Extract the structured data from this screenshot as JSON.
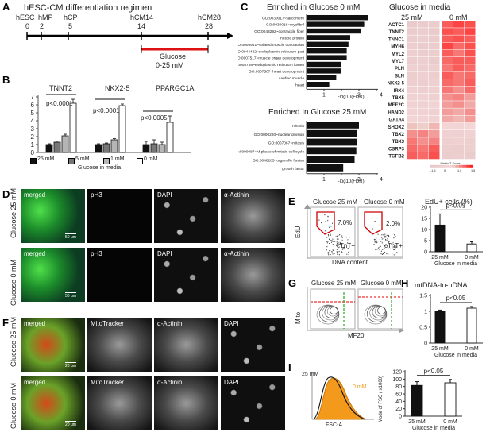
{
  "panel_letters": [
    "A",
    "B",
    "C",
    "D",
    "E",
    "F",
    "G",
    "H",
    "I"
  ],
  "panelA": {
    "title": "hESC-CM differentiation regimen",
    "stages": [
      {
        "name": "hESC",
        "day": "0"
      },
      {
        "name": "hMP",
        "day": "2"
      },
      {
        "name": "hCP",
        "day": "5"
      },
      {
        "name": "hCM14",
        "day": "14"
      },
      {
        "name": "hCM28",
        "day": "28"
      }
    ],
    "treatment": "Glucose",
    "treatment_conc": "0-25 mM"
  },
  "panelB": {
    "genes": [
      "TNNT2",
      "NKX2-5",
      "PPARGC1A"
    ],
    "pvals": [
      "p<0.0001",
      "p<0.0001",
      "p<0.0005"
    ],
    "yticks": [
      "0",
      "1",
      "2",
      "3",
      "4",
      "5",
      "6",
      "7"
    ],
    "legend": [
      "25 mM",
      "5 mM",
      "1 mM",
      "0 mM"
    ],
    "legend_title": "Glucose in media",
    "colors": [
      "#111111",
      "#777777",
      "#b5b5b5",
      "#ffffff"
    ]
  },
  "panelC": {
    "title1": "Enriched in Glucose 0 mM",
    "title2": "Enriched In Glucose 25 mM",
    "go1_labels": [
      "GO:0030017~sarcomere",
      "GO:0030016~myofibril",
      "GO:0043292~contractile fiber",
      "muscle protein",
      "GO:0006941~striated muscle contraction",
      "GO:0044432~endoplasmic reticulum part",
      "GO:0007517~muscle organ development",
      "GO:0005788~endoplasmic reticulum lumen",
      "GO:0007507~heart development",
      "cardiac muscle",
      "heart"
    ],
    "go1_values": [
      3.5,
      3.3,
      3.1,
      2.5,
      2.4,
      2.3,
      2.3,
      2.0,
      2.0,
      1.7,
      1.3
    ],
    "go2_labels": [
      "mitosis",
      "GO:0000280~nuclear division",
      "GO:0007067~mitosis",
      "GO:0000087~M phase of mitotic cell cycle",
      "GO:0048285~organelle fission",
      "growth factor"
    ],
    "go2_values": [
      3.0,
      2.9,
      2.9,
      2.85,
      2.75,
      2.1
    ],
    "xticks": [
      "0",
      "1",
      "2",
      "3",
      "4"
    ],
    "xlabel": "-log10(FDR)",
    "heat_title": "Glucose in media",
    "heat_cols": [
      "25 mM",
      "0 mM"
    ],
    "genes": [
      "ACTC1",
      "TNNT2",
      "TNNC1",
      "MYH6",
      "MYL2",
      "MYL7",
      "PLN",
      "SLN",
      "NKX2-5",
      "IRX4",
      "TBX5",
      "MEF2C",
      "HAND2",
      "GATA4",
      "SHOX2",
      "TBX2",
      "TBX3",
      "CSRP3",
      "TGFB2"
    ],
    "heat_values": [
      [
        -1.2,
        -1.1,
        -1.0,
        1.0,
        1.2,
        1.1
      ],
      [
        -1.1,
        -1.0,
        -1.2,
        1.1,
        1.0,
        1.2
      ],
      [
        -1.0,
        -0.9,
        -1.1,
        1.0,
        1.1,
        1.0
      ],
      [
        -0.9,
        -1.1,
        -1.0,
        1.2,
        0.9,
        1.1
      ],
      [
        -0.8,
        -1.0,
        -0.9,
        1.0,
        0.8,
        1.1
      ],
      [
        -1.0,
        -0.8,
        -1.1,
        0.9,
        1.0,
        1.0
      ],
      [
        -0.7,
        -0.9,
        -0.8,
        0.8,
        1.0,
        0.9
      ],
      [
        -0.9,
        -0.7,
        -0.9,
        1.0,
        0.8,
        0.9
      ],
      [
        -0.8,
        -0.9,
        -0.7,
        0.9,
        0.8,
        1.0
      ],
      [
        -0.6,
        -0.8,
        -0.7,
        0.8,
        0.6,
        0.9
      ],
      [
        -0.6,
        -0.5,
        -0.7,
        0.6,
        0.7,
        0.5
      ],
      [
        -0.5,
        -0.6,
        -0.4,
        0.5,
        0.6,
        0.4
      ],
      [
        -0.4,
        -0.5,
        -0.6,
        0.5,
        0.4,
        0.6
      ],
      [
        -0.3,
        -0.4,
        -0.5,
        0.4,
        0.3,
        0.5
      ],
      [
        0.2,
        0.1,
        0.3,
        -0.2,
        -0.3,
        -0.1
      ],
      [
        0.6,
        0.7,
        0.5,
        -0.6,
        -0.7,
        -0.5
      ],
      [
        0.8,
        0.6,
        0.7,
        -0.7,
        -0.6,
        -0.8
      ],
      [
        0.9,
        0.8,
        1.0,
        -0.9,
        -1.0,
        -0.8
      ],
      [
        1.0,
        0.9,
        1.1,
        -1.0,
        -0.9,
        -1.1
      ]
    ],
    "heat_legend": "Matrix Z-Score",
    "heat_legend_ticks": [
      "-1.5",
      "0",
      "1.0",
      "1.5"
    ]
  },
  "panelD": {
    "rows": [
      "Glucose 25 mM",
      "Glucose 0 mM"
    ],
    "tiles": [
      "merged",
      "pH3",
      "DAPI",
      "α-Actinin"
    ],
    "scale": "50 um"
  },
  "panelE": {
    "flow_titles": [
      "Glucose 25 mM",
      "Glucose 0 mM"
    ],
    "gate_pct": [
      "7.0%",
      "2.0%"
    ],
    "gate_label": "cTnT+",
    "ylabel": "EdU",
    "xlabel": "DNA content",
    "bar_title": "EdU+ cells (%)",
    "yticks": [
      "0",
      "5",
      "10",
      "15",
      "20"
    ],
    "pval": "p<0.01",
    "xcats": [
      "25 mM",
      "0 mM"
    ],
    "xgroup": "Glucose in media"
  },
  "panelF": {
    "rows": [
      "Glucose 25 mM",
      "Glucose 0 mM"
    ],
    "tiles": [
      "merged",
      "MitoTracker",
      "α-Actinin",
      "DAPI"
    ],
    "scale": "20 um"
  },
  "panelG": {
    "flow_titles": [
      "Glucose 25 mM",
      "Glucose 0 mM"
    ],
    "ylabel": "Mito",
    "xlabel": "MF20"
  },
  "panelH": {
    "title": "mtDNA-to-nDNA",
    "yticks": [
      "0",
      "0.5",
      "1",
      "1.5"
    ],
    "pval": "p<0.05",
    "xcats": [
      "25 mM",
      "0 mM"
    ],
    "xgroup": "Glucose in media"
  },
  "panelI": {
    "hist_labels": [
      "25 mM",
      "0 mM"
    ],
    "xlabel": "FSC-A",
    "ylabel": "Mode of FSC ( x1000)",
    "yticks": [
      "0",
      "20",
      "40",
      "60",
      "80",
      "100",
      "120"
    ],
    "pval": "p<0.05",
    "xcats": [
      "25 mM",
      "0 mM"
    ],
    "xgroup": "Glucose in media"
  },
  "chart_data": [
    {
      "type": "bar",
      "panel": "B",
      "categories": [
        "TNNT2",
        "NKX2-5",
        "PPARGC1A"
      ],
      "series": [
        {
          "name": "25 mM",
          "values": [
            1.0,
            1.0,
            1.0
          ],
          "errors": [
            0.1,
            0.1,
            0.4
          ]
        },
        {
          "name": "5 mM",
          "values": [
            1.3,
            1.1,
            1.1
          ],
          "errors": [
            0.15,
            0.1,
            0.5
          ]
        },
        {
          "name": "1 mM",
          "values": [
            2.1,
            1.6,
            1.0
          ],
          "errors": [
            0.2,
            0.15,
            0.3
          ]
        },
        {
          "name": "0 mM",
          "values": [
            6.2,
            5.9,
            3.8
          ],
          "errors": [
            0.5,
            0.2,
            0.8
          ]
        }
      ],
      "ylim": [
        0,
        7
      ]
    },
    {
      "type": "bar",
      "panel": "E",
      "title": "EdU+ cells (%)",
      "categories": [
        "25 mM",
        "0 mM"
      ],
      "values": [
        12,
        3.5
      ],
      "errors": [
        5,
        1
      ],
      "ylim": [
        0,
        20
      ]
    },
    {
      "type": "bar",
      "panel": "H",
      "title": "mtDNA-to-nDNA",
      "categories": [
        "25 mM",
        "0 mM"
      ],
      "values": [
        1.0,
        1.1
      ],
      "errors": [
        0.04,
        0.05
      ],
      "ylim": [
        0,
        1.5
      ]
    },
    {
      "type": "bar",
      "panel": "I",
      "categories": [
        "25 mM",
        "0 mM"
      ],
      "values": [
        83,
        90
      ],
      "errors": [
        10,
        9
      ],
      "ylim": [
        0,
        120
      ],
      "ylabel": "Mode of FSC ( x1000)"
    }
  ]
}
